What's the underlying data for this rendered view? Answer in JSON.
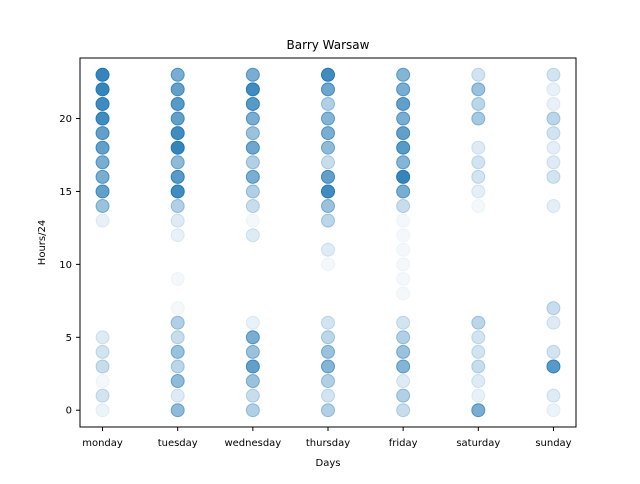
{
  "chart_data": {
    "type": "scatter",
    "title": "Barry Warsaw",
    "xlabel": "Days",
    "ylabel": "Hours/24",
    "categories": [
      "monday",
      "tuesday",
      "wednesday",
      "thursday",
      "friday",
      "saturday",
      "sunday"
    ],
    "yticks": [
      0,
      5,
      10,
      15,
      20
    ],
    "ylim": [
      -1.15,
      24.15
    ],
    "grid": false,
    "color": "#1f77b4",
    "points": [
      [
        0,
        23,
        0.9
      ],
      [
        0,
        22,
        0.9
      ],
      [
        0,
        21,
        0.85
      ],
      [
        0,
        20,
        0.85
      ],
      [
        0,
        19,
        0.7
      ],
      [
        0,
        18,
        0.7
      ],
      [
        0,
        17,
        0.6
      ],
      [
        0,
        16,
        0.6
      ],
      [
        0,
        15,
        0.7
      ],
      [
        0,
        14,
        0.45
      ],
      [
        0,
        13,
        0.1
      ],
      [
        0,
        5,
        0.15
      ],
      [
        0,
        4,
        0.2
      ],
      [
        0,
        3,
        0.25
      ],
      [
        0,
        2,
        0.05
      ],
      [
        0,
        1,
        0.2
      ],
      [
        0,
        0,
        0.08
      ],
      [
        1,
        23,
        0.6
      ],
      [
        1,
        22,
        0.7
      ],
      [
        1,
        21,
        0.75
      ],
      [
        1,
        20,
        0.7
      ],
      [
        1,
        19,
        0.85
      ],
      [
        1,
        18,
        0.9
      ],
      [
        1,
        17,
        0.5
      ],
      [
        1,
        16,
        0.75
      ],
      [
        1,
        15,
        0.85
      ],
      [
        1,
        14,
        0.35
      ],
      [
        1,
        13,
        0.15
      ],
      [
        1,
        12,
        0.1
      ],
      [
        1,
        9,
        0.05
      ],
      [
        1,
        7,
        0.05
      ],
      [
        1,
        6,
        0.35
      ],
      [
        1,
        5,
        0.25
      ],
      [
        1,
        4,
        0.45
      ],
      [
        1,
        3,
        0.3
      ],
      [
        1,
        2,
        0.5
      ],
      [
        1,
        1,
        0.15
      ],
      [
        1,
        0,
        0.5
      ],
      [
        2,
        23,
        0.6
      ],
      [
        2,
        22,
        0.85
      ],
      [
        2,
        21,
        0.75
      ],
      [
        2,
        20,
        0.6
      ],
      [
        2,
        19,
        0.45
      ],
      [
        2,
        18,
        0.65
      ],
      [
        2,
        17,
        0.35
      ],
      [
        2,
        16,
        0.6
      ],
      [
        2,
        15,
        0.35
      ],
      [
        2,
        14,
        0.25
      ],
      [
        2,
        13,
        0.05
      ],
      [
        2,
        12,
        0.15
      ],
      [
        2,
        6,
        0.1
      ],
      [
        2,
        5,
        0.6
      ],
      [
        2,
        4,
        0.45
      ],
      [
        2,
        3,
        0.7
      ],
      [
        2,
        2,
        0.45
      ],
      [
        2,
        1,
        0.25
      ],
      [
        2,
        0,
        0.35
      ],
      [
        3,
        23,
        0.85
      ],
      [
        3,
        22,
        0.65
      ],
      [
        3,
        21,
        0.35
      ],
      [
        3,
        20,
        0.55
      ],
      [
        3,
        19,
        0.6
      ],
      [
        3,
        18,
        0.5
      ],
      [
        3,
        17,
        0.25
      ],
      [
        3,
        16,
        0.7
      ],
      [
        3,
        15,
        0.85
      ],
      [
        3,
        14,
        0.45
      ],
      [
        3,
        13,
        0.3
      ],
      [
        3,
        11,
        0.15
      ],
      [
        3,
        10,
        0.05
      ],
      [
        3,
        6,
        0.2
      ],
      [
        3,
        5,
        0.3
      ],
      [
        3,
        4,
        0.45
      ],
      [
        3,
        3,
        0.55
      ],
      [
        3,
        2,
        0.35
      ],
      [
        3,
        1,
        0.2
      ],
      [
        3,
        0,
        0.35
      ],
      [
        4,
        23,
        0.55
      ],
      [
        4,
        22,
        0.6
      ],
      [
        4,
        21,
        0.7
      ],
      [
        4,
        20,
        0.6
      ],
      [
        4,
        19,
        0.7
      ],
      [
        4,
        18,
        0.75
      ],
      [
        4,
        17,
        0.55
      ],
      [
        4,
        16,
        0.9
      ],
      [
        4,
        15,
        0.6
      ],
      [
        4,
        14,
        0.25
      ],
      [
        4,
        13,
        0.05
      ],
      [
        4,
        12,
        0.05
      ],
      [
        4,
        11,
        0.05
      ],
      [
        4,
        10,
        0.05
      ],
      [
        4,
        9,
        0.05
      ],
      [
        4,
        8,
        0.05
      ],
      [
        4,
        6,
        0.2
      ],
      [
        4,
        5,
        0.35
      ],
      [
        4,
        4,
        0.45
      ],
      [
        4,
        3,
        0.55
      ],
      [
        4,
        2,
        0.15
      ],
      [
        4,
        1,
        0.35
      ],
      [
        4,
        0,
        0.25
      ],
      [
        5,
        23,
        0.2
      ],
      [
        5,
        22,
        0.45
      ],
      [
        5,
        21,
        0.3
      ],
      [
        5,
        20,
        0.4
      ],
      [
        5,
        18,
        0.15
      ],
      [
        5,
        17,
        0.2
      ],
      [
        5,
        16,
        0.2
      ],
      [
        5,
        15,
        0.12
      ],
      [
        5,
        14,
        0.05
      ],
      [
        5,
        6,
        0.3
      ],
      [
        5,
        5,
        0.2
      ],
      [
        5,
        4,
        0.2
      ],
      [
        5,
        3,
        0.25
      ],
      [
        5,
        2,
        0.15
      ],
      [
        5,
        1,
        0.1
      ],
      [
        5,
        0,
        0.6
      ],
      [
        6,
        23,
        0.2
      ],
      [
        6,
        22,
        0.1
      ],
      [
        6,
        21,
        0.1
      ],
      [
        6,
        20,
        0.3
      ],
      [
        6,
        19,
        0.2
      ],
      [
        6,
        18,
        0.12
      ],
      [
        6,
        17,
        0.15
      ],
      [
        6,
        16,
        0.2
      ],
      [
        6,
        14,
        0.12
      ],
      [
        6,
        7,
        0.25
      ],
      [
        6,
        6,
        0.15
      ],
      [
        6,
        4,
        0.2
      ],
      [
        6,
        3,
        0.75
      ],
      [
        6,
        1,
        0.15
      ],
      [
        6,
        0,
        0.08
      ]
    ]
  }
}
